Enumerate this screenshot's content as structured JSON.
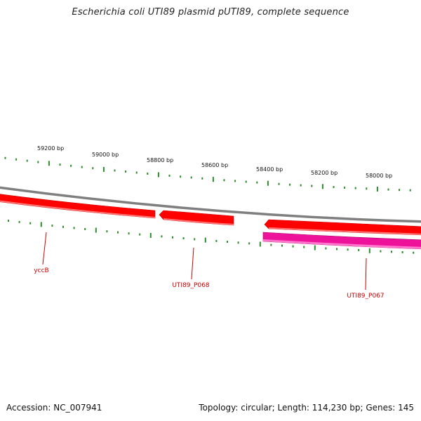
{
  "title": "Escherichia coli UTI89 plasmid pUTI89, complete sequence",
  "footer": {
    "accession": "Accession: NC_007941",
    "summary": "Topology: circular; Length: 114,230 bp; Genes: 145"
  },
  "colors": {
    "backbone": "#7f7f7f",
    "tick": "#2f8a2f",
    "gene_forward": "#ff0000",
    "gene_reverse": "#ee1199",
    "gene_label": "#cc0000"
  },
  "scale": {
    "labels": [
      "59200 bp",
      "59000 bp",
      "58800 bp",
      "58600 bp",
      "58400 bp",
      "58200 bp",
      "58000 bp"
    ]
  },
  "genes": [
    {
      "name": "yccB",
      "strand": "forward"
    },
    {
      "name": "UTI89_P068",
      "strand": "forward"
    },
    {
      "name": "UTI89_P067",
      "strand": "reverse"
    }
  ]
}
